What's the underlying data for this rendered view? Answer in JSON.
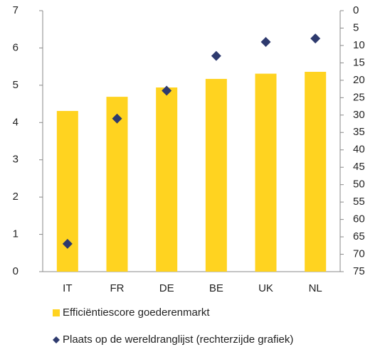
{
  "chart_data": {
    "type": "bar",
    "categories": [
      "IT",
      "FR",
      "DE",
      "BE",
      "UK",
      "NL"
    ],
    "series": [
      {
        "name": "Efficiëntiescore goederenmarkt",
        "color": "#ffd320",
        "values": [
          4.31,
          4.69,
          4.94,
          5.17,
          5.31,
          5.36
        ]
      },
      {
        "name": "Plaats op de wereldranglijst (rechterzijde grafiek)",
        "color": "#2e3a6e",
        "type": "scatter",
        "marker": "diamond",
        "axis": "y2",
        "values": [
          67,
          31,
          23,
          13,
          9,
          8
        ]
      }
    ],
    "ylim": [
      0,
      7
    ],
    "yticks": [
      0,
      1,
      2,
      3,
      4,
      5,
      6,
      7
    ],
    "y2lim": [
      75,
      0
    ],
    "y2ticks": [
      0,
      5,
      10,
      15,
      20,
      25,
      30,
      35,
      40,
      45,
      50,
      55,
      60,
      65,
      70,
      75
    ]
  }
}
